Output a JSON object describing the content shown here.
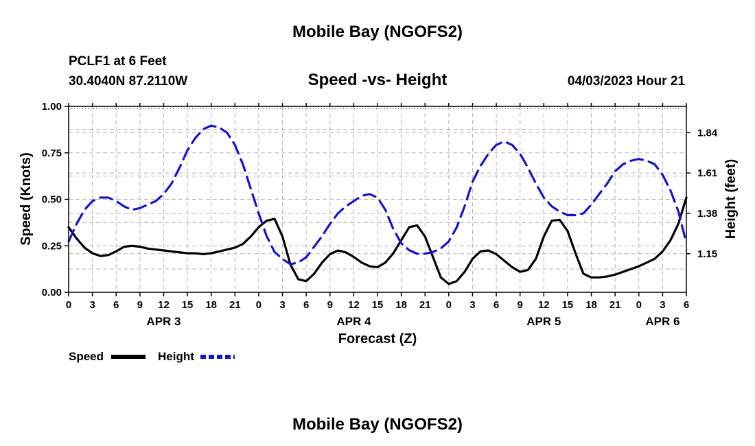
{
  "page": {
    "title": "Mobile Bay (NGOFS2)",
    "footer_title": "Mobile Bay (NGOFS2)"
  },
  "station": {
    "name": "PCLF1 at 6 Feet",
    "coords": "30.4040N  87.2110W",
    "date": "04/03/2023 Hour 21"
  },
  "chart_data": {
    "type": "line",
    "title": "Speed -vs- Height",
    "xlabel": "Forecast (Z)",
    "ylabel": "Speed (Knots)",
    "y2label": "Height (feet)",
    "x_unit": "hours from 00Z APR 3",
    "xlim": [
      0,
      78
    ],
    "ylim": [
      0,
      1
    ],
    "y2lim": [
      0.93,
      1.99
    ],
    "grid": true,
    "x_ticks": [
      {
        "x": 0,
        "label": "0"
      },
      {
        "x": 3,
        "label": "3"
      },
      {
        "x": 6,
        "label": "6"
      },
      {
        "x": 9,
        "label": "9"
      },
      {
        "x": 12,
        "label": "12"
      },
      {
        "x": 15,
        "label": "15"
      },
      {
        "x": 18,
        "label": "18"
      },
      {
        "x": 21,
        "label": "21"
      },
      {
        "x": 24,
        "label": "0"
      },
      {
        "x": 27,
        "label": "3"
      },
      {
        "x": 30,
        "label": "6"
      },
      {
        "x": 33,
        "label": "9"
      },
      {
        "x": 36,
        "label": "12"
      },
      {
        "x": 39,
        "label": "15"
      },
      {
        "x": 42,
        "label": "18"
      },
      {
        "x": 45,
        "label": "21"
      },
      {
        "x": 48,
        "label": "0"
      },
      {
        "x": 51,
        "label": "3"
      },
      {
        "x": 54,
        "label": "6"
      },
      {
        "x": 57,
        "label": "9"
      },
      {
        "x": 60,
        "label": "12"
      },
      {
        "x": 63,
        "label": "15"
      },
      {
        "x": 66,
        "label": "18"
      },
      {
        "x": 69,
        "label": "21"
      },
      {
        "x": 72,
        "label": "0"
      },
      {
        "x": 75,
        "label": "3"
      },
      {
        "x": 78,
        "label": "6"
      }
    ],
    "day_labels": [
      {
        "x": 12,
        "label": "APR 3"
      },
      {
        "x": 36,
        "label": "APR 4"
      },
      {
        "x": 60,
        "label": "APR 5"
      },
      {
        "x": 75,
        "label": "APR 6"
      }
    ],
    "y_ticks": [
      {
        "y": 0,
        "label": "0.00"
      },
      {
        "y": 0.25,
        "label": "0.25"
      },
      {
        "y": 0.5,
        "label": "0.50"
      },
      {
        "y": 0.75,
        "label": "0.75"
      },
      {
        "y": 1,
        "label": "1.00"
      }
    ],
    "y2_ticks": [
      {
        "y": 1.15,
        "label": "1.15"
      },
      {
        "y": 1.38,
        "label": "1.38"
      },
      {
        "y": 1.61,
        "label": "1.61"
      },
      {
        "y": 1.84,
        "label": "1.84"
      }
    ],
    "legend": [
      {
        "name": "Speed",
        "color": "#000000",
        "style": "solid"
      },
      {
        "name": "Height",
        "color": "#1515c8",
        "style": "dashed"
      }
    ],
    "series": [
      {
        "name": "Speed",
        "axis": "left",
        "color": "#000000",
        "x": [
          0,
          1,
          2,
          3,
          4,
          5,
          6,
          7,
          8,
          9,
          10,
          11,
          12,
          13,
          14,
          15,
          16,
          17,
          18,
          19,
          20,
          21,
          22,
          23,
          24,
          25,
          26,
          27,
          28,
          29,
          30,
          31,
          32,
          33,
          34,
          35,
          36,
          37,
          38,
          39,
          40,
          41,
          42,
          43,
          44,
          45,
          46,
          47,
          48,
          49,
          50,
          51,
          52,
          53,
          54,
          55,
          56,
          57,
          58,
          59,
          60,
          61,
          62,
          63,
          64,
          65,
          66,
          67,
          68,
          69,
          70,
          71,
          72,
          73,
          74,
          75,
          76,
          77,
          78
        ],
        "values": [
          0.35,
          0.29,
          0.24,
          0.21,
          0.195,
          0.2,
          0.22,
          0.245,
          0.25,
          0.245,
          0.235,
          0.23,
          0.225,
          0.22,
          0.215,
          0.21,
          0.21,
          0.205,
          0.21,
          0.22,
          0.23,
          0.24,
          0.26,
          0.3,
          0.35,
          0.385,
          0.395,
          0.3,
          0.15,
          0.07,
          0.06,
          0.1,
          0.16,
          0.205,
          0.225,
          0.215,
          0.19,
          0.16,
          0.14,
          0.135,
          0.16,
          0.21,
          0.28,
          0.35,
          0.36,
          0.3,
          0.19,
          0.08,
          0.045,
          0.06,
          0.11,
          0.18,
          0.22,
          0.225,
          0.205,
          0.17,
          0.135,
          0.11,
          0.12,
          0.18,
          0.3,
          0.385,
          0.39,
          0.33,
          0.21,
          0.1,
          0.08,
          0.08,
          0.085,
          0.095,
          0.11,
          0.125,
          0.14,
          0.16,
          0.18,
          0.22,
          0.28,
          0.37,
          0.51
        ]
      },
      {
        "name": "Height",
        "axis": "right",
        "color": "#1515c8",
        "x": [
          0,
          1,
          2,
          3,
          4,
          5,
          6,
          7,
          8,
          9,
          10,
          11,
          12,
          13,
          14,
          15,
          16,
          17,
          18,
          19,
          20,
          21,
          22,
          23,
          24,
          25,
          26,
          27,
          28,
          29,
          30,
          31,
          32,
          33,
          34,
          35,
          36,
          37,
          38,
          39,
          40,
          41,
          42,
          43,
          44,
          45,
          46,
          47,
          48,
          49,
          50,
          51,
          52,
          53,
          54,
          55,
          56,
          57,
          58,
          59,
          60,
          61,
          62,
          63,
          64,
          65,
          66,
          67,
          68,
          69,
          70,
          71,
          72,
          73,
          74,
          75,
          76,
          77,
          78
        ],
        "values": [
          1.22,
          1.32,
          1.4,
          1.45,
          1.47,
          1.47,
          1.45,
          1.42,
          1.4,
          1.41,
          1.43,
          1.45,
          1.49,
          1.55,
          1.64,
          1.74,
          1.81,
          1.86,
          1.88,
          1.87,
          1.84,
          1.77,
          1.66,
          1.52,
          1.38,
          1.25,
          1.16,
          1.12,
          1.09,
          1.1,
          1.13,
          1.19,
          1.25,
          1.32,
          1.38,
          1.42,
          1.45,
          1.48,
          1.49,
          1.47,
          1.4,
          1.29,
          1.21,
          1.17,
          1.15,
          1.15,
          1.16,
          1.18,
          1.22,
          1.3,
          1.42,
          1.56,
          1.65,
          1.72,
          1.77,
          1.79,
          1.77,
          1.72,
          1.64,
          1.55,
          1.47,
          1.42,
          1.39,
          1.37,
          1.37,
          1.38,
          1.43,
          1.49,
          1.55,
          1.62,
          1.66,
          1.68,
          1.69,
          1.68,
          1.66,
          1.6,
          1.51,
          1.39,
          1.21
        ]
      }
    ]
  }
}
